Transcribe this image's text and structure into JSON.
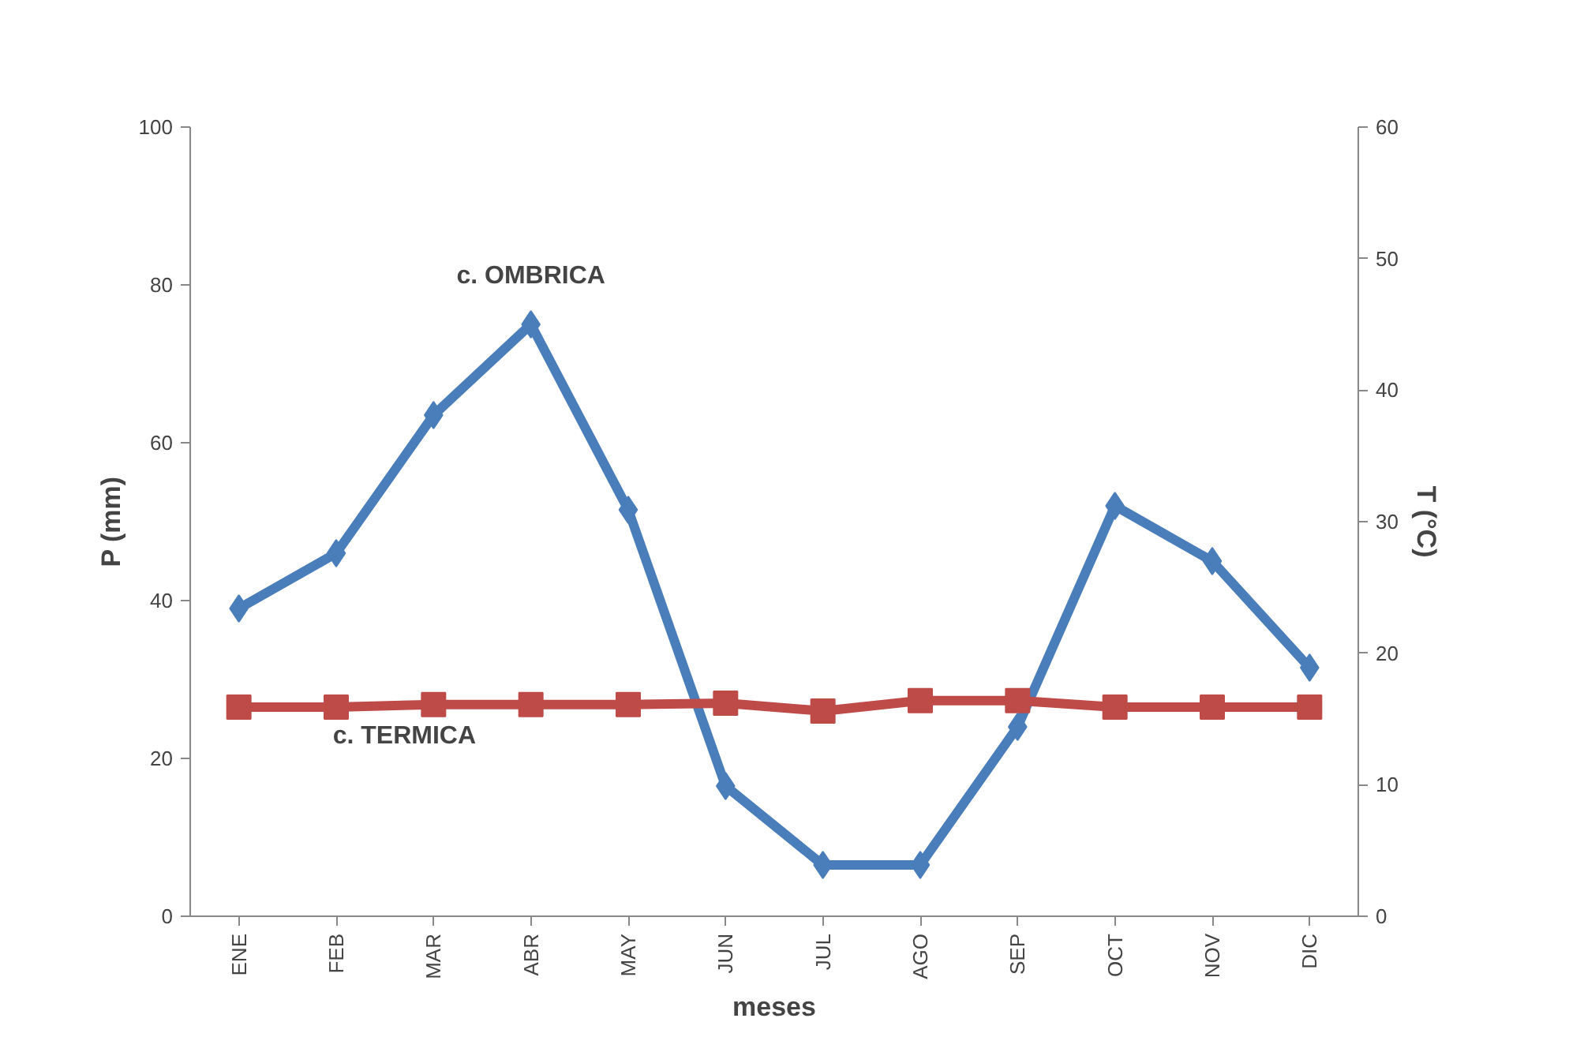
{
  "chart_data": {
    "type": "line",
    "xlabel": "meses",
    "ylabel": "P (mm)",
    "y2label": "T (°C)",
    "categories": [
      "ENE",
      "FEB",
      "MAR",
      "ABR",
      "MAY",
      "JUN",
      "JUL",
      "AGO",
      "SEP",
      "OCT",
      "NOV",
      "DIC"
    ],
    "ylim": [
      0,
      100
    ],
    "yticks": [
      0,
      20,
      40,
      60,
      80,
      100
    ],
    "y2lim": [
      0,
      60
    ],
    "y2ticks": [
      0,
      10,
      20,
      30,
      40,
      50,
      60
    ],
    "grid": false,
    "line_style": "solid",
    "series": [
      {
        "name": "c. OMBRICA",
        "color": "#4a7ebb",
        "marker": "diamond",
        "values": [
          39,
          46,
          63.5,
          75,
          51.5,
          16.5,
          6.5,
          6.5,
          24,
          52,
          45,
          31.5
        ]
      },
      {
        "name": "c. TERMICA",
        "color": "#be4b48",
        "marker": "square",
        "axis": "y2",
        "values": [
          15.9,
          15.9,
          16.1,
          16.1,
          16.1,
          16.2,
          15.6,
          16.4,
          16.4,
          15.9,
          15.9,
          15.9
        ]
      }
    ]
  }
}
